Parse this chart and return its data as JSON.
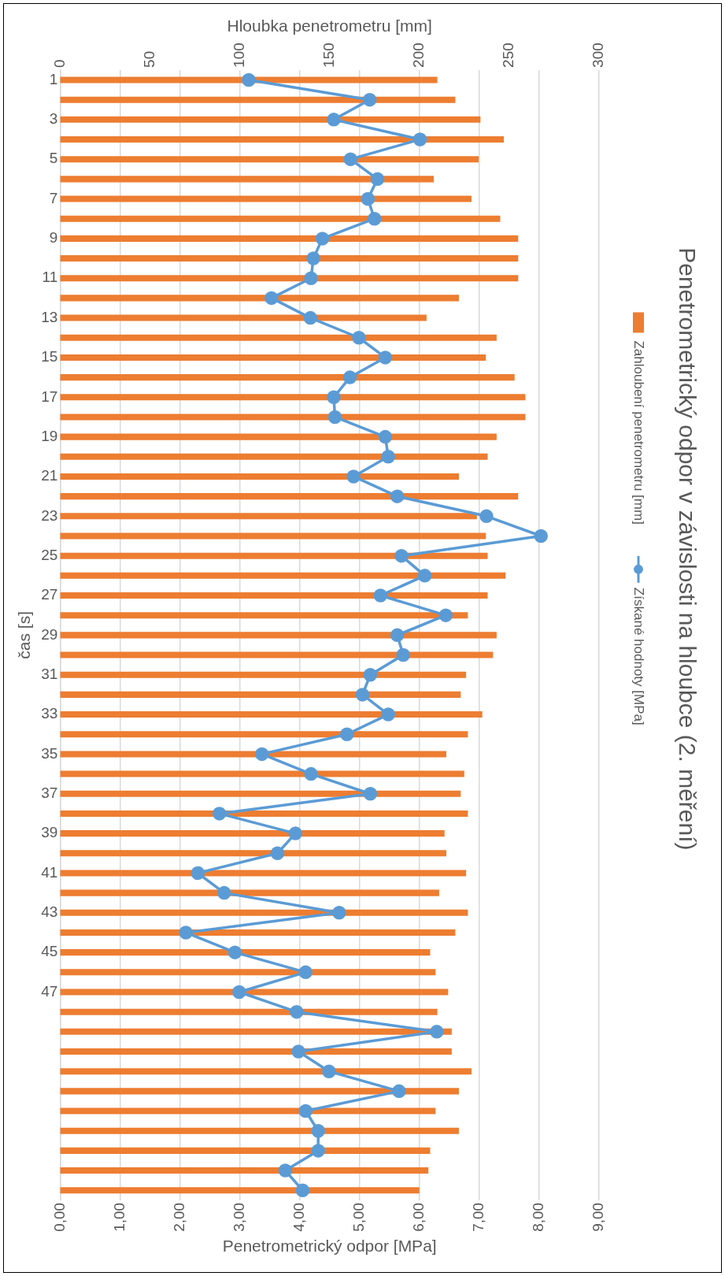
{
  "chart_data": {
    "type": "bar",
    "orientation": "horizontal",
    "title": "Penetrometrický odpor v závislosti na hloubce (2. měření)",
    "ylabel": "čas [s]",
    "x2label": "Hloubka penetrometru [mm]",
    "xlabel": "Penetrometrický odpor [MPa]",
    "categories": [
      "1",
      null,
      "3",
      null,
      "5",
      null,
      "7",
      null,
      "9",
      null,
      "11",
      null,
      "13",
      null,
      "15",
      null,
      "17",
      null,
      "19",
      null,
      "21",
      null,
      "23",
      null,
      "25",
      null,
      "27",
      null,
      "29",
      null,
      "31",
      null,
      "33",
      null,
      "35",
      null,
      "37",
      null,
      "39",
      null,
      "41",
      null,
      "43",
      null,
      "45",
      null,
      "47",
      null,
      null,
      null,
      null,
      null,
      null,
      null,
      null,
      null,
      null
    ],
    "series": [
      {
        "name": "Zahloubení penetrometru [mm]",
        "axis": "x2",
        "color": "#ed7d31",
        "values": [
          210,
          220,
          234,
          247,
          233,
          208,
          229,
          245,
          255,
          255,
          255,
          222,
          204,
          243,
          237,
          253,
          259,
          259,
          243,
          238,
          222,
          255,
          232,
          237,
          238,
          248,
          238,
          227,
          243,
          241,
          226,
          223,
          235,
          227,
          215,
          225,
          223,
          227,
          214,
          215,
          226,
          211,
          227,
          220,
          206,
          209,
          216,
          210,
          218,
          218,
          229,
          222,
          209,
          222,
          206,
          205,
          200
        ]
      },
      {
        "name": "Získané hodnoty [MPa]",
        "type": "line",
        "color": "#5b9bd5",
        "values": [
          3.15,
          5.17,
          4.57,
          6.01,
          4.85,
          5.3,
          5.14,
          5.25,
          4.38,
          4.23,
          4.19,
          3.53,
          4.18,
          4.99,
          5.43,
          4.84,
          4.57,
          4.59,
          5.43,
          5.48,
          4.9,
          5.63,
          7.12,
          8.03,
          5.7,
          6.09,
          5.35,
          6.44,
          5.63,
          5.73,
          5.18,
          5.05,
          5.48,
          4.79,
          3.37,
          4.19,
          5.18,
          2.66,
          3.93,
          3.63,
          2.3,
          2.74,
          4.66,
          2.1,
          2.92,
          4.1,
          2.99,
          3.95,
          6.29,
          3.98,
          4.49,
          5.66,
          4.1,
          4.31,
          4.31,
          3.76,
          4.05
        ]
      }
    ],
    "x2lim": [
      0,
      300
    ],
    "x2ticks": [
      0,
      50,
      100,
      150,
      200,
      250,
      300
    ],
    "xlim": [
      0,
      9
    ],
    "xticks": [
      {
        "value": 0,
        "label": "0,00"
      },
      {
        "value": 1,
        "label": "1,00"
      },
      {
        "value": 2,
        "label": "2,00"
      },
      {
        "value": 3,
        "label": "3,00"
      },
      {
        "value": 4,
        "label": "4,00"
      },
      {
        "value": 5,
        "label": "5,00"
      },
      {
        "value": 6,
        "label": "6,00"
      },
      {
        "value": 7,
        "label": "7,00"
      },
      {
        "value": 8,
        "label": "8,00"
      },
      {
        "value": 9,
        "label": "9,00"
      }
    ],
    "grid": "x",
    "legend": "right",
    "marker": "circle",
    "line_style": "solid"
  }
}
